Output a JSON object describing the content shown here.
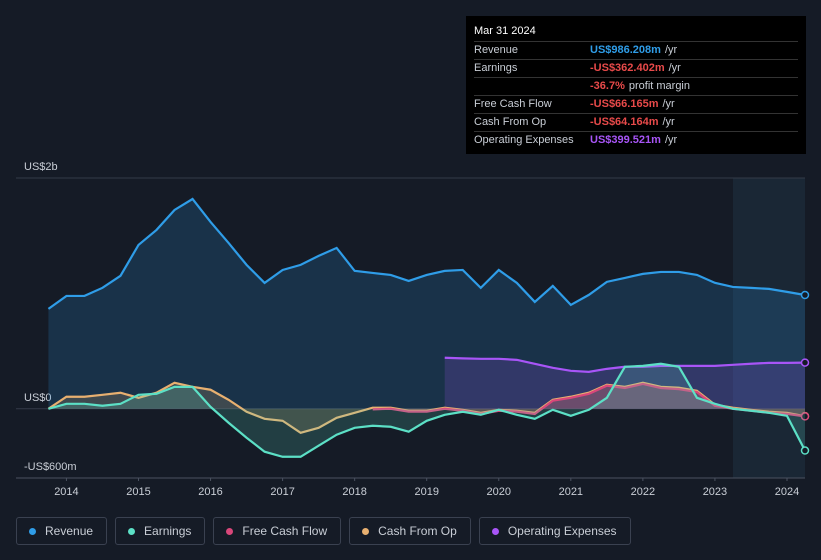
{
  "chart_data": {
    "type": "area",
    "x": [
      2013.75,
      2014,
      2014.25,
      2014.5,
      2014.75,
      2015,
      2015.25,
      2015.5,
      2015.75,
      2016,
      2016.25,
      2016.5,
      2016.75,
      2017,
      2017.25,
      2017.5,
      2017.75,
      2018,
      2018.25,
      2018.5,
      2018.75,
      2019,
      2019.25,
      2019.5,
      2019.75,
      2020,
      2020.25,
      2020.5,
      2020.75,
      2021,
      2021.25,
      2021.5,
      2021.75,
      2022,
      2022.25,
      2022.5,
      2022.75,
      2023,
      2023.25,
      2023.5,
      2023.75,
      2024,
      2024.25
    ],
    "series": [
      {
        "name": "Revenue",
        "color": "#2f9de8",
        "values": [
          866,
          978,
          978,
          1048,
          1152,
          1420,
          1550,
          1723,
          1818,
          1619,
          1437,
          1247,
          1091,
          1203,
          1247,
          1325,
          1394,
          1195,
          1177,
          1160,
          1108,
          1160,
          1195,
          1203,
          1048,
          1203,
          1091,
          926,
          1065,
          900,
          987,
          1100,
          1134,
          1169,
          1186,
          1186,
          1160,
          1091,
          1056,
          1048,
          1039,
          1013,
          986
        ]
      },
      {
        "name": "Earnings",
        "color": "#5ce0c6",
        "values": [
          0,
          43,
          43,
          26,
          43,
          121,
          130,
          190,
          190,
          17,
          -121,
          -251,
          -372,
          -416,
          -416,
          -320,
          -225,
          -165,
          -147,
          -156,
          -199,
          -104,
          -52,
          -26,
          -52,
          -9,
          -52,
          -87,
          -9,
          -61,
          -9,
          95,
          364,
          372,
          390,
          364,
          95,
          43,
          0,
          -17,
          -35,
          -61,
          -362
        ]
      },
      {
        "name": "Free Cash Flow",
        "color": "#d9477a",
        "values": [
          null,
          null,
          null,
          null,
          null,
          null,
          null,
          null,
          null,
          null,
          null,
          null,
          null,
          null,
          null,
          null,
          null,
          null,
          -5,
          0,
          -25,
          -25,
          0,
          -17,
          -45,
          -17,
          -25,
          -45,
          70,
          95,
          130,
          200,
          180,
          215,
          180,
          170,
          145,
          25,
          0,
          -17,
          -35,
          -45,
          -66
        ]
      },
      {
        "name": "Cash From Op",
        "color": "#e8b070",
        "values": [
          0,
          104,
          104,
          121,
          139,
          95,
          139,
          225,
          190,
          165,
          78,
          -26,
          -87,
          -104,
          -208,
          -165,
          -78,
          -35,
          9,
          9,
          -17,
          -17,
          9,
          -9,
          -35,
          -9,
          -17,
          -35,
          78,
          104,
          139,
          208,
          190,
          225,
          190,
          182,
          156,
          35,
          9,
          -9,
          -26,
          -35,
          -64
        ]
      },
      {
        "name": "Operating Expenses",
        "color": "#a855f7",
        "values": [
          null,
          null,
          null,
          null,
          null,
          null,
          null,
          null,
          null,
          null,
          null,
          null,
          null,
          null,
          null,
          null,
          null,
          null,
          null,
          null,
          null,
          null,
          442,
          437,
          433,
          433,
          424,
          390,
          355,
          329,
          320,
          346,
          364,
          364,
          372,
          372,
          372,
          372,
          381,
          390,
          398,
          398,
          400
        ]
      }
    ],
    "xlim": [
      2013.3,
      2024.25
    ],
    "xticks": [
      2014,
      2015,
      2016,
      2017,
      2018,
      2019,
      2020,
      2021,
      2022,
      2023,
      2024
    ],
    "ylim": [
      -600,
      2000
    ],
    "yticks": [
      {
        "value": 2000,
        "label": "US$2b"
      },
      {
        "value": 0,
        "label": "US$0"
      },
      {
        "value": -600,
        "label": "-US$600m"
      }
    ]
  },
  "tooltip": {
    "date": "Mar 31 2024",
    "rows": [
      {
        "label": "Revenue",
        "value": "US$986.208m",
        "unit": "/yr",
        "color": "#2f9de8"
      },
      {
        "label": "Earnings",
        "value": "-US$362.402m",
        "unit": "/yr",
        "color": "#e84a4a"
      },
      {
        "label": "",
        "value": "-36.7%",
        "unit": "profit margin",
        "color": "#e84a4a"
      },
      {
        "label": "Free Cash Flow",
        "value": "-US$66.165m",
        "unit": "/yr",
        "color": "#e84a4a"
      },
      {
        "label": "Cash From Op",
        "value": "-US$64.164m",
        "unit": "/yr",
        "color": "#e84a4a"
      },
      {
        "label": "Operating Expenses",
        "value": "US$399.521m",
        "unit": "/yr",
        "color": "#a855f7"
      }
    ]
  }
}
